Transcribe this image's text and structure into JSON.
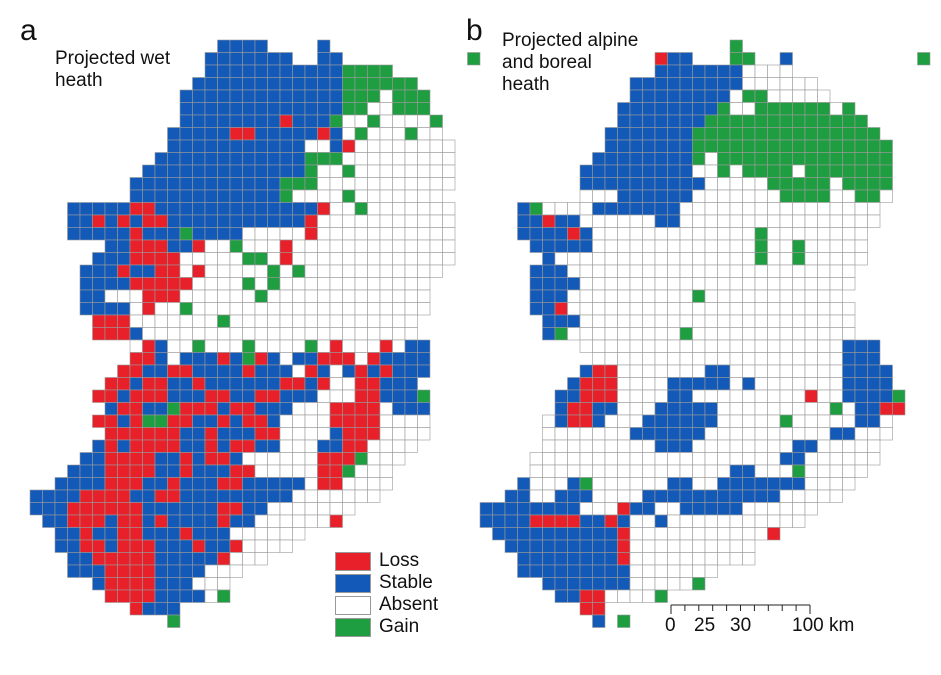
{
  "colors": {
    "R": "#e8202a",
    "B": "#1259b8",
    "W": "#ffffff",
    "G": "#1f9d41",
    "grid": "#9a9a9a"
  },
  "panels": [
    {
      "letter": "a",
      "title": "Projected wet heath",
      "grid": [
        "...............BBBB....B............",
        "..............BBBBBBB..BB..........G",
        "..............BBBBBBBBBBBGGGG.......",
        ".............BBBBBBBBBBBBGGGGGG.....",
        "............BBBBBBBBBBBBBGGGWGGG....",
        "............BBBBBBBBBBBBBGGWWGGG....",
        "............BBBBBBBBRBBBGWWGWWWWG...",
        "...........BBBBBRRBBBBBRBWGWWWGWW...",
        "...........BBBBBBBBBBBWWBRWWWWWWWW..",
        "..........BBBBBBBBBBBBGGGWWWWWWWWW..",
        ".........BBBBBBBBBBBBBGWWGWWWWWWWW..",
        "........BBBBBBBBBBBBGGGWWWWWWWWWWW..",
        "........BBBBBBBBBBBBGWWWWGWWWWWWW...",
        "...BBBBBRRBBBBBBBBBBBBBRWWGWWWWWWW..",
        "...BBRBRBRRBBBBBBBBBBBRWWWWWWWWWWW..",
        "...BBBBBRBBBGBBBBWWWWWRWWWWWWWWWWW..",
        "......BBRRRBBRWWGWWWRWWWWWWWWWWWWW..",
        ".....BBBRRRRWWWWWGGWRWWWWWWWWWWWWW..",
        "....BBBRBBRRWRWWWWWGWGWWWWWWWWWWW...",
        "....BBBBRRRRRWWWWGWGWWWWWWWWWWWW....",
        "....BBWWWRRRWWWWWWGWWWWWWWWWWWWW....",
        "....BBBBWRWWGWWWWWWWWWWWWWWWWWWW....",
        ".....RRRWWWWWWWGWWWWWWWWWWWWWWW.....",
        ".....RRRBWWWWWWWWWWWWWWWWWWWWWW.....",
        "........WRBWWGWWWGWWWWGWRWWWRWBB....",
        "........RRBWBBBRBGRBWBBRRRWRBBBB....",
        ".......RRBBRRBBBBRBBBWRBWBRBRBBB....",
        "......RRBRRBBRBBBBBBRRBRWWRRBBB.....",
        ".....RRBRRRBBBRRBBRRBBBWWWRRBBBG....",
        "......BRRBBGRRRBRRBBBWWWRRRRWBBB....",
        ".....RRBRGGRRBBRBRRBWWWWRRRRWWWW....",
        "......RRRRRRBBRBBBRRWWWWBRRRWWWW....",
        ".....BRBRRRRBBRBRRBBWWWBBRRWWWW.....",
        "....BBRRRRBBRBRRBWWWWWWRRRGWWW......",
        "...BBBRRRRBBRBBBRRWWWWWRRGWWW.......",
        "..BBBBRRRBBRBBBRRBBBBBWRRWWWW.......",
        "BBBBRRRRBBRRBBBBBBBBBWWWWWWW........",
        "BBBRRRRRRBBBBBBRRBBWWWWWWW..........",
        ".BBRRRBRRBRBBBBRBBWWWWWWR...........",
        "..BBRBBRRBBBRBBBWWWWWW..............",
        "..BBRRBRRRBBBRBBRWWWW...............",
        "...BBRRRRRBBBBBRWWW.................",
        "...BBBRRRRBBBBWWW...................",
        ".....BRRRRBBBWWW....................",
        "......RRRRBBBBWG....................",
        "........RBBB........................",
        "...........G........................"
      ]
    },
    {
      "letter": "b",
      "title": "Projected alpine and boreal heath",
      "grid": [
        "....................G...............",
        "..............RBB...GG..B..........G",
        "..............BBBBBBBWWWW...........",
        "............BBBBBBBBBWWWWWW.........",
        "............BBBBBBBBWGGWWWWW........",
        "...........BBBBBBBBGWWGGGGGGWG......",
        "...........BBBBBBBGGGGGGGGGGGGG.....",
        "..........BBBBBBBGGGGGGGGGGGGGGG....",
        "..........BBBBBBBGGGGGGGGGGGGGGGG...",
        ".........BBBBBBBBGWGGGGGGGGGGGGGG...",
        "........BBBBBBBBBWWGWGGGGWGGGGGGG...",
        "........BBBBBBBBBBWWWWWGGGGGWGGGG...",
        "........WWWBBBBBBWWWWWWWGGGGWWGGW...",
        "...BGWWWWBBBBBBBWWWWWWWWWWWWWWWW....",
        "...BBRBBWWWWWWBBWWWWWWWWWWWWWWWW....",
        "...BBBBRBWWWWWWWWWWWWWGWWWWWWWW.....",
        "....BBBBBWWWWWWWWWWWWWGWWGWWWWW.....",
        ".....BWWWWWWWWWWWWWWWWGWWGWWWWW.....",
        "....BBBWWWWWWWWWWWWWWWWWWWWWWW......",
        "....BBBBWWWWWWWWWWWWWWWWWWWWWW......",
        "....BBBWWWWWWWWWWGWWWWWWWWWWW.......",
        "....BBRWWWWWWWWWWWWWWWWWWWWWWW......",
        ".....BBBWWWWWWWWWWWWWWWWWWWWWW......",
        ".....BGWWWWWWWWWGWWWWWWWWWWWWW......",
        "........WWWWWWWWWWWWWWWWWWWWWBBB....",
        ".........WWWWWWWWWWWWWWWWWWWWBBB....",
        "........BRRWWWWWWWBBWWWWWWWWWBBBB...",
        ".......BRRRWWWWBBBBBWBWWWWWWWBBBB...",
        "......BBRRRWWWWBBWWWWWWWWWRWWBBBBG..",
        "......BRRBBWWWBBBBBWWWWWWWWWGWBBRR..",
        ".....WBRRBWWWBBBBBBWWWWWGWWWWWBBW...",
        ".....WWWWWWWBBBBBBWWWWWWWWWWBBWWW...",
        ".....WWWWWWWWWBBBWWWWWWWWBBWWWWW....",
        "....WWWWWWWWWWWWWWWWWWWWBBWWWWWW....",
        "....WWWWWWWWWWWWWWWWBBWWWGWWWWW.....",
        "...BWWWBGWWWWWWBBWWBBBBBBBWWWW......",
        "..BBWWBBBWWWWBBBBBBBBBBBWWWWW.......",
        "BBBBBBBBWWWRBBWWBBBBBWWWWWW.........",
        "BBBBRRRRBBRBWWBWWWWWWWWWWW..........",
        ".BBBBBBBBBBRWWWWWWWWWWWR............",
        "..BBBBBBBBBRWWWWWWWWWW..............",
        "...BBBBBBBBRWWWWWWWWWW..............",
        "...BBBBBBBBBWWWWWWW.................",
        ".....BBBBBBBWWWWWG..................",
        "......BBRRWWWWG.....................",
        "........RR..........................",
        ".........B.G........................"
      ]
    }
  ],
  "legend": [
    {
      "key": "R",
      "label": "Loss"
    },
    {
      "key": "B",
      "label": "Stable"
    },
    {
      "key": "W",
      "label": "Absent"
    },
    {
      "key": "G",
      "label": "Gain"
    }
  ],
  "scale_bar": {
    "labels": [
      "0",
      "25",
      "30",
      "100 km"
    ],
    "values_km": [
      0,
      25,
      30,
      100
    ]
  }
}
